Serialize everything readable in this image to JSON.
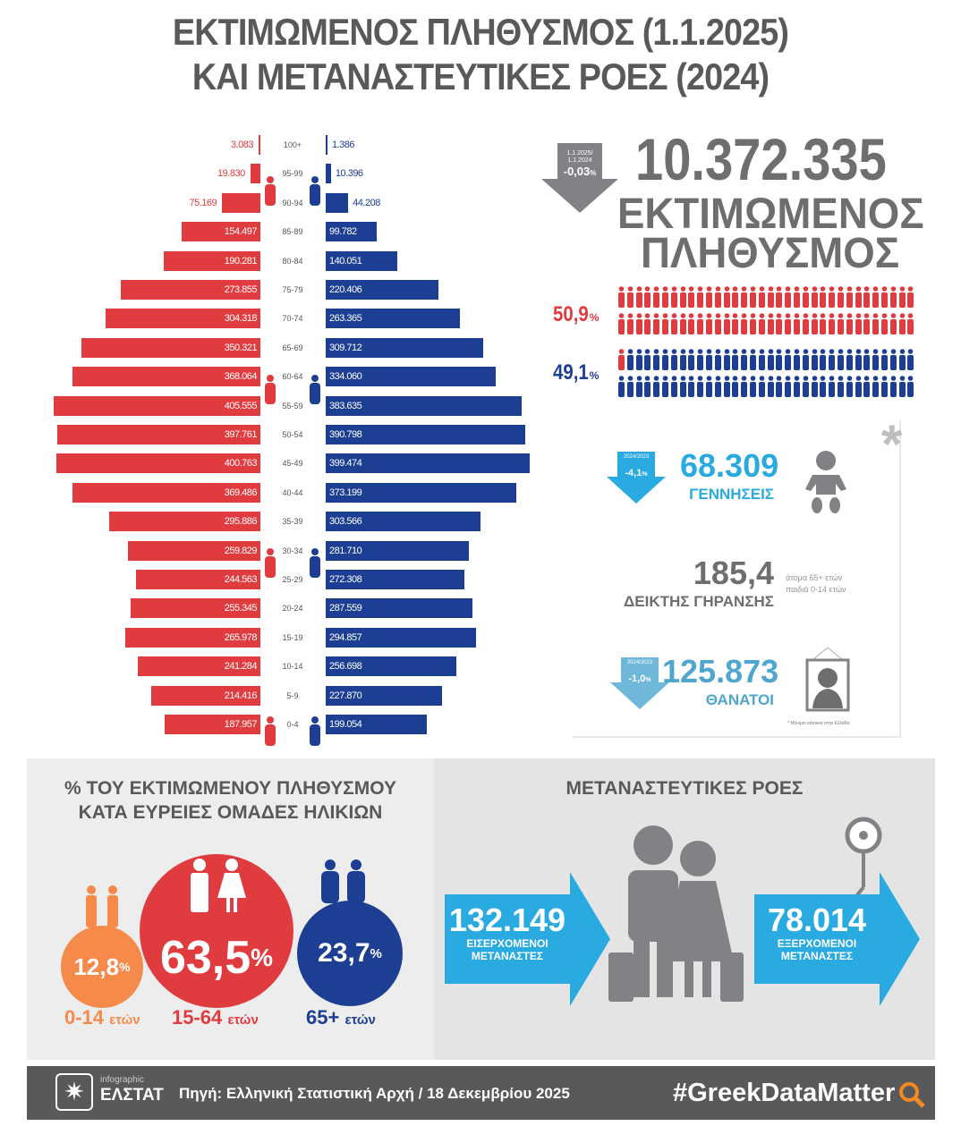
{
  "title": {
    "line1": "ΕΚΤΙΜΩΜΕΝΟΣ ΠΛΗΘΥΣΜΟΣ (1.1.2025)",
    "line2": "ΚΑΙ ΜΕΤΑΝΑΣΤΕΥΤΙΚΕΣ ΡΟΕΣ (2024)"
  },
  "colors": {
    "female": "#e03c3f",
    "male": "#1c3f94",
    "gray": "#6d6e70",
    "cyan": "#29abe2",
    "orange": "#f58a4b",
    "footer": "#58595b"
  },
  "chart_data": {
    "type": "bar",
    "subtype": "population-pyramid",
    "categories": [
      "100+",
      "95-99",
      "90-94",
      "85-89",
      "80-84",
      "75-79",
      "70-74",
      "65-69",
      "60-64",
      "55-59",
      "50-54",
      "45-49",
      "40-44",
      "35-39",
      "30-34",
      "25-29",
      "20-24",
      "15-19",
      "10-14",
      "5-9",
      "0-4"
    ],
    "series": [
      {
        "side": "left",
        "color": "#e03c3f",
        "values": [
          3083,
          19830,
          75169,
          154497,
          190281,
          273855,
          304318,
          350321,
          368064,
          405555,
          397761,
          400763,
          369486,
          295886,
          259829,
          244563,
          255345,
          265978,
          241284,
          214416,
          187957
        ],
        "labels": [
          "3.083",
          "19.830",
          "75.169",
          "154.497",
          "190.281",
          "273.855",
          "304.318",
          "350.321",
          "368.064",
          "405.555",
          "397.761",
          "400.763",
          "369.486",
          "295.886",
          "259.829",
          "244.563",
          "255.345",
          "265.978",
          "241.284",
          "214.416",
          "187.957"
        ]
      },
      {
        "side": "right",
        "color": "#1c3f94",
        "values": [
          1386,
          10396,
          44208,
          99782,
          140051,
          220406,
          263365,
          309712,
          334060,
          383635,
          390798,
          399474,
          373199,
          303566,
          281710,
          272308,
          287559,
          294857,
          256698,
          227870,
          199054
        ],
        "labels": [
          "1.386",
          "10.396",
          "44.208",
          "99.782",
          "140.051",
          "220.406",
          "263.365",
          "309.712",
          "334.060",
          "383.635",
          "390.798",
          "399.474",
          "373.199",
          "303.566",
          "281.710",
          "272.308",
          "287.559",
          "294.857",
          "256.698",
          "227.870",
          "199.054"
        ]
      }
    ]
  },
  "population": {
    "change_period_1": "1.1.2025/",
    "change_period_2": "1.1.2024",
    "change": "-0,03",
    "pct": "%",
    "total": "10.372.335",
    "label1": "ΕΚΤΙΜΩΜΕΝΟΣ",
    "label2": "ΠΛΗΘΥΣΜΟΣ",
    "female_pct": "50,9",
    "male_pct": "49,1",
    "female_share": 50.9
  },
  "vitals": {
    "births": {
      "period": "2024/2023",
      "change": "-4,1",
      "value": "68.309",
      "label": "ΓΕΝΝΗΣΕΙΣ"
    },
    "ageing": {
      "value": "185,4",
      "label": "ΔΕΙΚΤΗΣ ΓΗΡΑΝΣΗΣ",
      "numerator": "άτομα 65+ ετών",
      "denominator": "παιδιά 0-14 ετών"
    },
    "deaths": {
      "period": "2024/2023",
      "change": "-1,0",
      "value": "125.873",
      "label": "ΘΑΝΑΤΟΙ"
    },
    "asterisk": "*",
    "footnote": "* Μόνιμοι κάτοικοι στην Ελλάδα"
  },
  "age_groups": {
    "title1": "% ΤΟΥ ΕΚΤΙΜΩΜΕΝΟΥ ΠΛΗΘΥΣΜΟΥ",
    "title2": "ΚΑΤΑ ΕΥΡΕΙΕΣ ΟΜΑΔΕΣ ΗΛΙΚΙΩΝ",
    "groups": [
      {
        "value": "12,8",
        "range": "0-14",
        "unit": "ετών",
        "color": "#f58a4b"
      },
      {
        "value": "63,5",
        "range": "15-64",
        "unit": "ετών",
        "color": "#e03c3f"
      },
      {
        "value": "23,7",
        "range": "65+",
        "unit": "ετών",
        "color": "#1c3f94"
      }
    ]
  },
  "migration": {
    "title": "ΜΕΤΑΝΑΣΤΕΥΤΙΚΕΣ ΡΟΕΣ",
    "inflow": {
      "value": "132.149",
      "line1": "ΕΙΣΕΡΧΟΜΕΝΟΙ",
      "line2": "ΜΕΤΑΝΑΣΤΕΣ"
    },
    "outflow": {
      "value": "78.014",
      "line1": "ΕΞΕΡΧΟΜΕΝΟΙ",
      "line2": "ΜΕΤΑΝΑΣΤΕΣ"
    }
  },
  "footer": {
    "logo_small": "infographic",
    "logo_big": "ΕΛΣΤΑΤ",
    "source": "Πηγή: Ελληνική Στατιστική Αρχή / 18 Δεκεμβρίου 2025",
    "hashtag": "#GreekDataMatter"
  }
}
